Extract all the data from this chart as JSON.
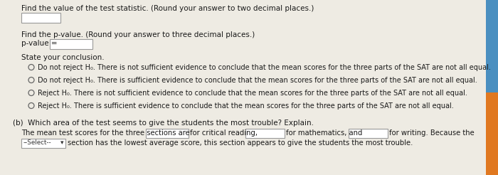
{
  "bg_color": "#eeebe3",
  "text_color": "#1a1a1a",
  "line1": "Find the value of the test statistic. (Round your answer to two decimal places.)",
  "line2": "Find the p-value. (Round your answer to three decimal places.)",
  "line3_a": "p-value = ",
  "line4": "State your conclusion.",
  "radio1": "Do not reject H₀. There is not sufficient evidence to conclude that the mean scores for the three parts of the SAT are not all equal.",
  "radio2": "Do not reject H₀. There is sufficient evidence to conclude that the mean scores for the three parts of the SAT are not all equal.",
  "radio3": "Reject H₀. There is not sufficient evidence to conclude that the mean scores for the three parts of the SAT are not all equal.",
  "radio4": "Reject H₀. There is sufficient evidence to conclude that the mean scores for the three parts of the SAT are not all equal.",
  "line_b_header": "(b)  Which area of the test seems to give the students the most trouble? Explain.",
  "line_b_text1": "The mean test scores for the three sections are",
  "line_b_text2": "for critical reading,",
  "line_b_text3": "for mathematics, and",
  "line_b_text4": "for writing. Because the",
  "line_b_text5": "section has the lowest average score, this section appears to give the students the most trouble.",
  "font_size": 7.5,
  "right_bar_orange": "#e07820",
  "right_bar_blue": "#4a8fc0"
}
